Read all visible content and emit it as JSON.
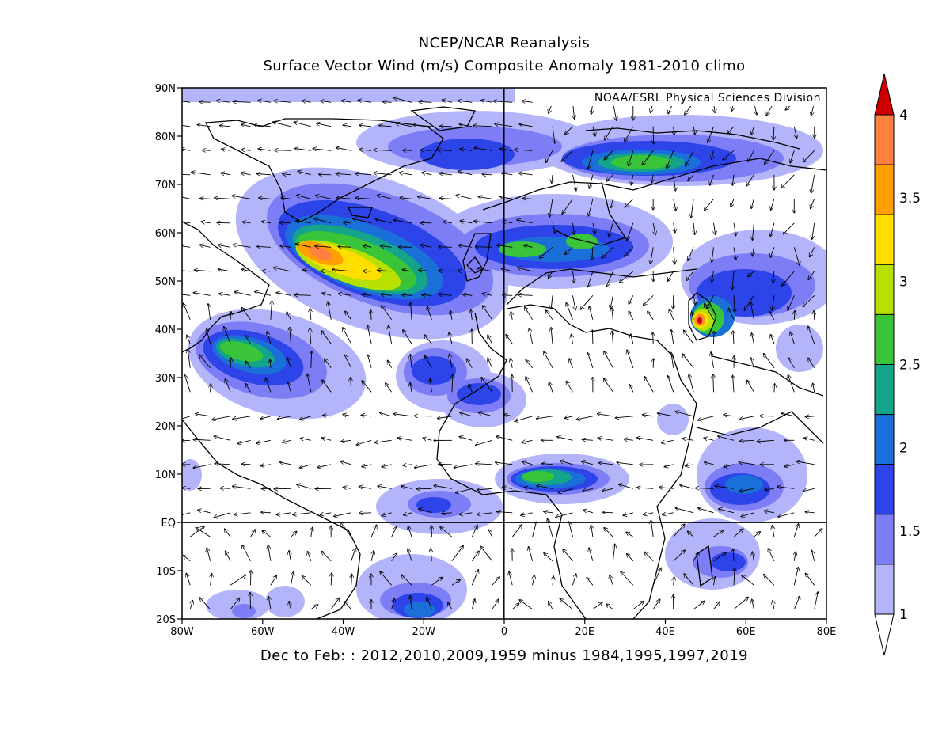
{
  "title_line1": "NCEP/NCAR Reanalysis",
  "title_line2": "Surface Vector Wind (m/s) Composite Anomaly 1981-2010 climo",
  "credit": "NOAA/ESRL Physical Sciences Division",
  "footer": "Dec to Feb: : 2012,2010,2009,1959 minus 1984,1995,1997,2019",
  "lat_labels": [
    "90N",
    "80N",
    "70N",
    "60N",
    "50N",
    "40N",
    "30N",
    "20N",
    "10N",
    "EQ",
    "10S",
    "20S"
  ],
  "lon_labels": [
    "80W",
    "60W",
    "40W",
    "20W",
    "0",
    "20E",
    "40E",
    "60E",
    "80E"
  ],
  "colorbar": {
    "labels": [
      "4",
      "3.5",
      "3",
      "2.5",
      "2",
      "1.5",
      "1"
    ],
    "colors": [
      "#ff8040",
      "#ffa000",
      "#ffde00",
      "#b7e000",
      "#3ac43a",
      "#13a48a",
      "#1a6fd8",
      "#2c44e8",
      "#7d7df5",
      "#b4b4fa"
    ],
    "top_color": "#cc0000",
    "bottom_color": "#ffffff"
  },
  "map_data": {
    "lon_range": [
      -80,
      80
    ],
    "lat_range": [
      -20,
      90
    ],
    "unit": "m/s",
    "anomaly_maxima": [
      {
        "lon": -47,
        "lat": 56,
        "value": 3.6
      },
      {
        "lon": 49,
        "lat": 42,
        "value": 4.0
      },
      {
        "lon": -65,
        "lat": 36,
        "value": 2.6
      },
      {
        "lon": 35,
        "lat": 75,
        "value": 2.5
      },
      {
        "lon": 10,
        "lat": 9,
        "value": 2.6
      }
    ]
  }
}
